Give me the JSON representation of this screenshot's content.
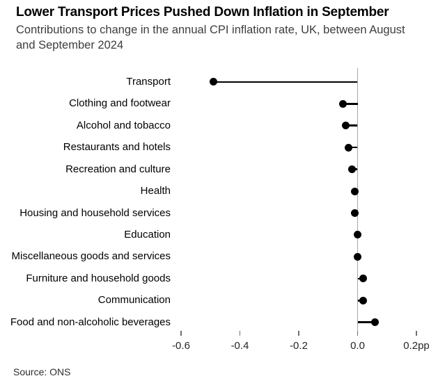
{
  "header": {
    "title": "Lower Transport Prices Pushed Down Inflation in September",
    "subtitle_lines": [
      "Contributions to change in the annual CPI inflation rate, UK, between August",
      "and September 2024"
    ]
  },
  "chart_data": {
    "type": "bar",
    "variant": "lollipop-dot",
    "orientation": "horizontal",
    "title": "Lower Transport Prices Pushed Down Inflation in September",
    "subtitle": "Contributions to change in the annual CPI inflation rate, UK, between August and September 2024",
    "unit": "pp",
    "categories": [
      "Transport",
      "Clothing and footwear",
      "Alcohol and tobacco",
      "Restaurants and hotels",
      "Recreation and culture",
      "Health",
      "Housing and household services",
      "Education",
      "Miscellaneous goods and services",
      "Furniture and household goods",
      "Communication",
      "Food and non-alcoholic beverages"
    ],
    "values": [
      -0.49,
      -0.05,
      -0.04,
      -0.03,
      -0.02,
      -0.01,
      -0.01,
      0,
      0,
      0.02,
      0.02,
      0.06
    ],
    "xlabel": "",
    "ylabel": "",
    "xlim": [
      -0.7,
      0.27
    ],
    "x_ticks": {
      "values": [
        -0.6,
        -0.4,
        -0.2,
        0,
        0.2
      ],
      "labels": [
        "-0.6",
        "-0.4",
        "-0.2",
        "0.0",
        "0.2pp"
      ]
    },
    "grid": false,
    "legend": false,
    "baseline": 0
  },
  "footer": {
    "source": "Source: ONS"
  },
  "colors": {
    "dot": "#000000",
    "stem": "#000000",
    "zero_line": "#a6a6a6",
    "axis_tick": "#6f6f6f",
    "title_text": "#000000",
    "subtitle_text": "#3d3d3d"
  }
}
